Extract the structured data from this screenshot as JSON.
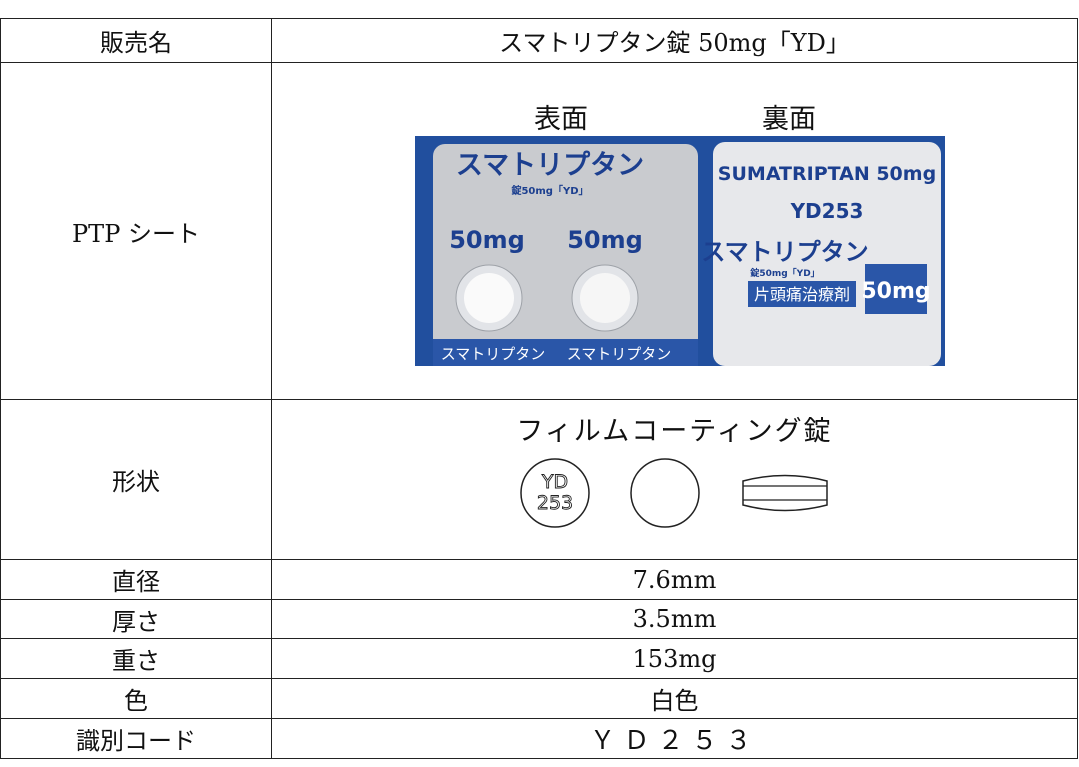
{
  "table": {
    "rows": [
      {
        "label": "販売名",
        "value": "スマトリプタン錠 50mg「YD」"
      },
      {
        "label": "PTP シート",
        "front": "表面",
        "back": "裏面",
        "photo": {
          "front_name": "スマトリプタン",
          "front_strength": "錠50mg「YD」",
          "front_dose": "50mg",
          "front_strip": "スマトリプタン",
          "back_name": "SUMATRIPTAN 50mg",
          "back_code": "YD253",
          "back_brand": "スマトリプタン",
          "back_strength": "錠50mg「YD」",
          "back_use": "片頭痛治療剤",
          "back_dose": "50mg"
        }
      },
      {
        "label": "形状",
        "value": "フィルムコーティング錠",
        "imprint": [
          "YD",
          "253"
        ]
      },
      {
        "label": "直径",
        "value": "7.6mm"
      },
      {
        "label": "厚さ",
        "value": "3.5mm"
      },
      {
        "label": "重さ",
        "value": "153mg"
      },
      {
        "label": "色",
        "value": "白色"
      },
      {
        "label": "識別コード",
        "value": "ＹＤ２５３"
      }
    ]
  }
}
